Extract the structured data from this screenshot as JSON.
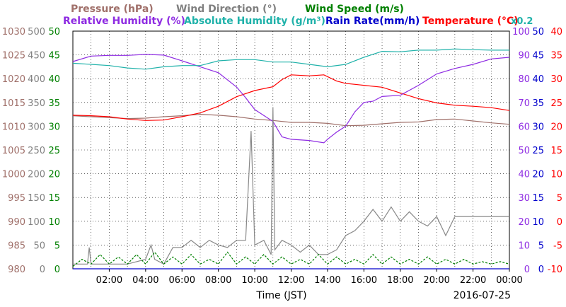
{
  "chart_data": {
    "type": "line",
    "date": "2016-07-25",
    "xlabel": "Time (JST)",
    "x_ticks": [
      "02:00",
      "04:00",
      "06:00",
      "08:00",
      "10:00",
      "12:00",
      "14:00",
      "16:00",
      "18:00",
      "20:00",
      "22:00",
      "00:00"
    ],
    "x_range_hours": [
      0,
      24
    ],
    "grid": true,
    "legend": {
      "row1": [
        {
          "key": "pressure",
          "label": "Pressure (hPa)"
        },
        {
          "key": "wind_direction",
          "label": "Wind Direction (°)"
        },
        {
          "key": "wind_speed",
          "label": "Wind Speed (m/s)"
        }
      ],
      "row2": [
        {
          "key": "relative_humidity",
          "label": "Relative Humidity (%)"
        },
        {
          "key": "absolute_humidity",
          "label": "Absolute Humidity (g/m³)"
        },
        {
          "key": "rain_rate",
          "label": "Rain Rate(mm/h)"
        },
        {
          "key": "temperature",
          "label": "Temperature (°C)"
        }
      ],
      "abs_humidity_scale_note": "x0.2"
    },
    "axes": {
      "pressure": {
        "side": "left",
        "min": 980,
        "max": 1030,
        "ticks": [
          980,
          985,
          990,
          995,
          1000,
          1005,
          1010,
          1015,
          1020,
          1025,
          1030
        ]
      },
      "wind_direction": {
        "side": "left",
        "min": 0,
        "max": 500,
        "ticks": [
          0,
          50,
          100,
          150,
          200,
          250,
          300,
          350,
          400,
          450,
          500
        ]
      },
      "wind_speed": {
        "side": "left",
        "min": 0,
        "max": 50,
        "ticks": [
          0,
          5,
          10,
          15,
          20,
          25,
          30,
          35,
          40,
          45,
          50
        ]
      },
      "relative_humidity": {
        "side": "right",
        "min": 0,
        "max": 100,
        "ticks": [
          0,
          10,
          20,
          30,
          40,
          50,
          60,
          70,
          80,
          90,
          100
        ]
      },
      "rain_rate": {
        "side": "right",
        "min": 0,
        "max": 50,
        "ticks": [
          0,
          5,
          10,
          15,
          20,
          25,
          30,
          35,
          40,
          45,
          50
        ]
      },
      "temperature": {
        "side": "right",
        "min": -10,
        "max": 40,
        "ticks": [
          -10,
          -5,
          0,
          5,
          10,
          15,
          20,
          25,
          30,
          35,
          40
        ]
      }
    },
    "series": [
      {
        "key": "pressure",
        "name": "Pressure",
        "axis": "pressure",
        "color": "#a0706a",
        "points": [
          [
            0,
            1012.2
          ],
          [
            1,
            1012
          ],
          [
            2,
            1011.8
          ],
          [
            3,
            1011.6
          ],
          [
            4,
            1011.7
          ],
          [
            5,
            1012
          ],
          [
            6,
            1012.2
          ],
          [
            7,
            1012.5
          ],
          [
            8,
            1012.3
          ],
          [
            9,
            1012
          ],
          [
            10,
            1011.5
          ],
          [
            11,
            1011.2
          ],
          [
            12,
            1010.8
          ],
          [
            13,
            1010.8
          ],
          [
            14,
            1010.6
          ],
          [
            15,
            1010.1
          ],
          [
            16,
            1010.2
          ],
          [
            17,
            1010.5
          ],
          [
            18,
            1010.8
          ],
          [
            19,
            1010.9
          ],
          [
            20,
            1011.4
          ],
          [
            21,
            1011.5
          ],
          [
            22,
            1011.1
          ],
          [
            23,
            1010.7
          ],
          [
            24,
            1010.4
          ]
        ]
      },
      {
        "key": "temperature",
        "name": "Temperature",
        "axis": "temperature",
        "color": "#ff0000",
        "points": [
          [
            0,
            22.3
          ],
          [
            1,
            22.2
          ],
          [
            2,
            22.0
          ],
          [
            3,
            21.5
          ],
          [
            4,
            21.2
          ],
          [
            5,
            21.3
          ],
          [
            6,
            22.0
          ],
          [
            7,
            22.8
          ],
          [
            8,
            24.2
          ],
          [
            9,
            26.2
          ],
          [
            10,
            27.5
          ],
          [
            11,
            28.3
          ],
          [
            11.5,
            29.8
          ],
          [
            12,
            30.8
          ],
          [
            13,
            30.6
          ],
          [
            13.8,
            30.8
          ],
          [
            14.5,
            29.5
          ],
          [
            15,
            29.0
          ],
          [
            16,
            28.6
          ],
          [
            17,
            28.2
          ],
          [
            18,
            27.0
          ],
          [
            19,
            25.8
          ],
          [
            20,
            24.9
          ],
          [
            21,
            24.4
          ],
          [
            22,
            24.2
          ],
          [
            23,
            23.9
          ],
          [
            24,
            23.3
          ]
        ]
      },
      {
        "key": "relative_humidity",
        "name": "Relative Humidity",
        "axis": "relative_humidity",
        "color": "#8e2be2",
        "points": [
          [
            0,
            87.2
          ],
          [
            1,
            89.5
          ],
          [
            2,
            89.8
          ],
          [
            3,
            89.8
          ],
          [
            4,
            90.2
          ],
          [
            5,
            89.9
          ],
          [
            6,
            87.5
          ],
          [
            7,
            85
          ],
          [
            8,
            82.5
          ],
          [
            9,
            76.5
          ],
          [
            9.5,
            72
          ],
          [
            10,
            67
          ],
          [
            11,
            62
          ],
          [
            11.5,
            55.5
          ],
          [
            12,
            54.5
          ],
          [
            13,
            54.0
          ],
          [
            13.8,
            53
          ],
          [
            14,
            54.5
          ],
          [
            14.5,
            57.5
          ],
          [
            15,
            60
          ],
          [
            15.5,
            66
          ],
          [
            16,
            70
          ],
          [
            16.5,
            70.5
          ],
          [
            17,
            72.5
          ],
          [
            18,
            73
          ],
          [
            19,
            77.2
          ],
          [
            20,
            82
          ],
          [
            21,
            84.3
          ],
          [
            22,
            86
          ],
          [
            23,
            88.3
          ],
          [
            24,
            89
          ]
        ]
      },
      {
        "key": "absolute_humidity",
        "name": "Absolute Humidity",
        "axis": "relative_humidity",
        "color": "#20b2aa",
        "points": [
          [
            0,
            86.5
          ],
          [
            1,
            86
          ],
          [
            2,
            85.5
          ],
          [
            3,
            84.5
          ],
          [
            4,
            84
          ],
          [
            5,
            85
          ],
          [
            6,
            85.5
          ],
          [
            7,
            85.5
          ],
          [
            8,
            87.5
          ],
          [
            9,
            88
          ],
          [
            10,
            88
          ],
          [
            11,
            87
          ],
          [
            12,
            87
          ],
          [
            13,
            86
          ],
          [
            14,
            85
          ],
          [
            15,
            86
          ],
          [
            16,
            89
          ],
          [
            17,
            91.5
          ],
          [
            18,
            91.3
          ],
          [
            19,
            92
          ],
          [
            20,
            92
          ],
          [
            21,
            92.5
          ],
          [
            22,
            92.2
          ],
          [
            23,
            92
          ],
          [
            24,
            92
          ]
        ]
      },
      {
        "key": "wind_direction",
        "name": "Wind Direction",
        "axis": "wind_direction",
        "color": "#888888",
        "points": [
          [
            0,
            10
          ],
          [
            0.8,
            10
          ],
          [
            0.9,
            45
          ],
          [
            1.0,
            10
          ],
          [
            2,
            10
          ],
          [
            3,
            10
          ],
          [
            4,
            20
          ],
          [
            4.3,
            50
          ],
          [
            4.5,
            20
          ],
          [
            5,
            10
          ],
          [
            5.5,
            45
          ],
          [
            6,
            45
          ],
          [
            6.5,
            60
          ],
          [
            7,
            45
          ],
          [
            7.5,
            60
          ],
          [
            8,
            50
          ],
          [
            8.5,
            45
          ],
          [
            9,
            60
          ],
          [
            9.5,
            60
          ],
          [
            9.8,
            290
          ],
          [
            10,
            50
          ],
          [
            10.5,
            60
          ],
          [
            10.9,
            30
          ],
          [
            11.0,
            340
          ],
          [
            11.1,
            40
          ],
          [
            11.5,
            60
          ],
          [
            12,
            50
          ],
          [
            12.5,
            35
          ],
          [
            13,
            50
          ],
          [
            13.5,
            30
          ],
          [
            14,
            30
          ],
          [
            14.5,
            40
          ],
          [
            15,
            70
          ],
          [
            15.5,
            80
          ],
          [
            16,
            100
          ],
          [
            16.5,
            125
          ],
          [
            17,
            100
          ],
          [
            17.5,
            130
          ],
          [
            18,
            100
          ],
          [
            18.5,
            120
          ],
          [
            19,
            100
          ],
          [
            19.5,
            90
          ],
          [
            20,
            110
          ],
          [
            20.5,
            70
          ],
          [
            21,
            110
          ],
          [
            22,
            110
          ],
          [
            23,
            110
          ],
          [
            24,
            110
          ]
        ]
      },
      {
        "key": "wind_speed",
        "name": "Wind Speed",
        "axis": "wind_speed",
        "color": "#008000",
        "points": [
          [
            0,
            0.5
          ],
          [
            0.5,
            2
          ],
          [
            1,
            1
          ],
          [
            1.5,
            3
          ],
          [
            2,
            1
          ],
          [
            2.5,
            2.5
          ],
          [
            3,
            1
          ],
          [
            3.5,
            3
          ],
          [
            4,
            1
          ],
          [
            4.5,
            3.5
          ],
          [
            5,
            1
          ],
          [
            5.5,
            2.5
          ],
          [
            6,
            1
          ],
          [
            6.5,
            3
          ],
          [
            7,
            1
          ],
          [
            7.5,
            2
          ],
          [
            8,
            1
          ],
          [
            8.5,
            3.5
          ],
          [
            9,
            1
          ],
          [
            9.5,
            2.5
          ],
          [
            10,
            1
          ],
          [
            10.5,
            3
          ],
          [
            11,
            1
          ],
          [
            11.5,
            2.5
          ],
          [
            12,
            1
          ],
          [
            12.5,
            2
          ],
          [
            13,
            1
          ],
          [
            13.5,
            3
          ],
          [
            14,
            1
          ],
          [
            14.5,
            2.5
          ],
          [
            15,
            1
          ],
          [
            15.5,
            2
          ],
          [
            16,
            1
          ],
          [
            16.5,
            3
          ],
          [
            17,
            1
          ],
          [
            17.5,
            2.5
          ],
          [
            18,
            1
          ],
          [
            18.5,
            2
          ],
          [
            19,
            1
          ],
          [
            19.5,
            2.5
          ],
          [
            20,
            1
          ],
          [
            20.5,
            2
          ],
          [
            21,
            1
          ],
          [
            21.5,
            2
          ],
          [
            22,
            1
          ],
          [
            22.5,
            1.5
          ],
          [
            23,
            1
          ],
          [
            23.5,
            1.5
          ],
          [
            24,
            1
          ]
        ]
      },
      {
        "key": "rain_rate",
        "name": "Rain Rate",
        "axis": "rain_rate",
        "color": "#0000cc",
        "points": [
          [
            0,
            0
          ],
          [
            24,
            0
          ]
        ]
      }
    ]
  }
}
